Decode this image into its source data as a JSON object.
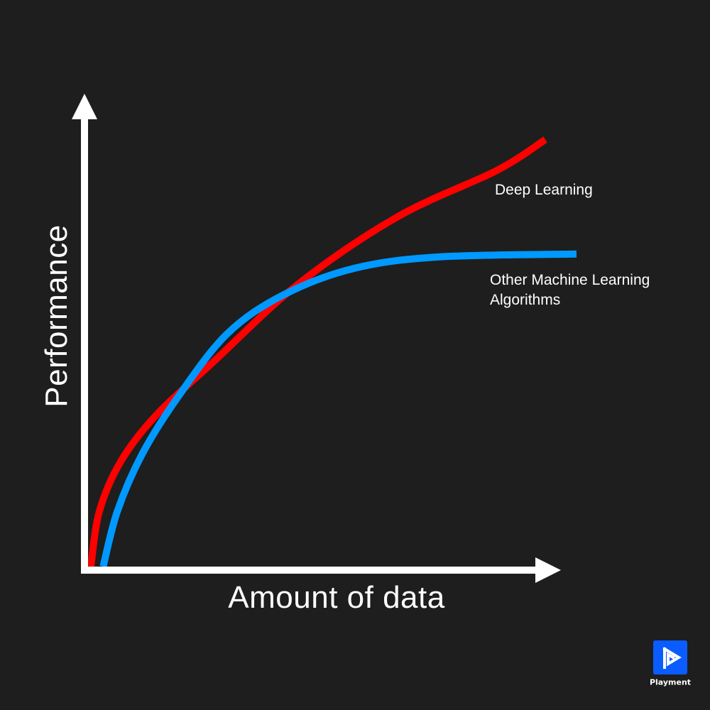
{
  "chart_data": {
    "type": "line",
    "title": "",
    "xlabel": "Amount of data",
    "ylabel": "Performance",
    "xlim": [
      0,
      100
    ],
    "ylim": [
      0,
      100
    ],
    "grid": false,
    "tick_labels": false,
    "series": [
      {
        "name": "Deep Learning",
        "color": "#ff0000",
        "x": [
          0.6,
          2.4,
          6.9,
          14.4,
          26.4,
          44.4,
          65.5,
          86.5,
          96.7
        ],
        "y": [
          0,
          11.7,
          22.2,
          32,
          43.2,
          59.7,
          74,
          83.8,
          90.3
        ]
      },
      {
        "name": "Other Machine Learning Algorithms",
        "name_lines": [
          "Other Machine Learning",
          "Algorithms"
        ],
        "color": "#0099ff",
        "x": [
          3.2,
          6.2,
          11.4,
          18.9,
          29.4,
          41.4,
          56.4,
          74.4,
          103.3
        ],
        "y": [
          0,
          11.7,
          23.7,
          35.7,
          49.2,
          57.5,
          63.1,
          65.5,
          66.1
        ]
      }
    ],
    "axis_color": "#ffffff",
    "background": "#1e1e1e"
  },
  "logo": {
    "text": "Playment",
    "color": "#0a5cff"
  }
}
